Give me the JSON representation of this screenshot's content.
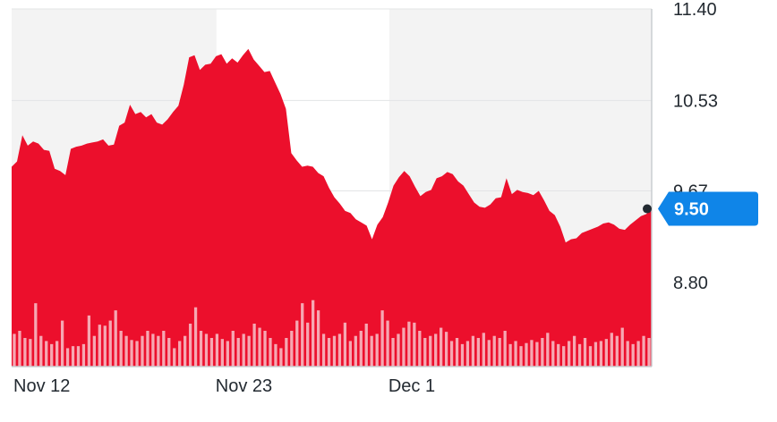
{
  "chart_data": {
    "type": "area",
    "x_ticks": [
      "Nov 12",
      "Nov 23",
      "Dec 1"
    ],
    "y_ticks": [
      "11.40",
      "10.53",
      "9.67",
      "8.80"
    ],
    "ylim": [
      8.0,
      11.4
    ],
    "grid": true,
    "current_price": "9.50",
    "colors": {
      "area": "#ec0f2c",
      "volume": "#f6a8b3",
      "band": "#f3f3f3",
      "grid": "#e3e4e6",
      "price_tag": "#0f85e8",
      "dot": "#232a31"
    },
    "price": [
      9.9,
      9.95,
      10.2,
      10.1,
      10.14,
      10.12,
      10.06,
      10.05,
      9.88,
      9.86,
      9.82,
      10.07,
      10.09,
      10.1,
      10.12,
      10.13,
      10.14,
      10.16,
      10.1,
      10.11,
      10.29,
      10.32,
      10.49,
      10.4,
      10.42,
      10.37,
      10.4,
      10.32,
      10.3,
      10.35,
      10.42,
      10.48,
      10.68,
      10.94,
      10.96,
      10.82,
      10.87,
      10.88,
      10.95,
      10.97,
      10.88,
      10.93,
      10.89,
      10.96,
      11.02,
      10.92,
      10.86,
      10.8,
      10.81,
      10.7,
      10.59,
      10.45,
      10.03,
      9.96,
      9.9,
      9.91,
      9.9,
      9.84,
      9.81,
      9.7,
      9.61,
      9.55,
      9.48,
      9.46,
      9.4,
      9.37,
      9.34,
      9.21,
      9.35,
      9.42,
      9.56,
      9.72,
      9.8,
      9.86,
      9.81,
      9.71,
      9.62,
      9.66,
      9.68,
      9.79,
      9.81,
      9.85,
      9.83,
      9.76,
      9.72,
      9.64,
      9.56,
      9.52,
      9.51,
      9.54,
      9.6,
      9.61,
      9.79,
      9.64,
      9.68,
      9.66,
      9.65,
      9.63,
      9.67,
      9.58,
      9.48,
      9.44,
      9.33,
      9.18,
      9.21,
      9.22,
      9.27,
      9.29,
      9.31,
      9.33,
      9.36,
      9.37,
      9.35,
      9.31,
      9.3,
      9.35,
      9.39,
      9.43,
      9.45,
      9.5
    ],
    "volume": [
      0.32,
      0.35,
      0.28,
      0.27,
      0.62,
      0.3,
      0.25,
      0.22,
      0.25,
      0.45,
      0.18,
      0.2,
      0.2,
      0.22,
      0.5,
      0.3,
      0.41,
      0.4,
      0.45,
      0.55,
      0.35,
      0.3,
      0.26,
      0.25,
      0.3,
      0.35,
      0.32,
      0.3,
      0.35,
      0.28,
      0.18,
      0.25,
      0.3,
      0.42,
      0.58,
      0.35,
      0.32,
      0.28,
      0.32,
      0.27,
      0.25,
      0.35,
      0.28,
      0.32,
      0.3,
      0.42,
      0.38,
      0.35,
      0.28,
      0.22,
      0.18,
      0.28,
      0.35,
      0.45,
      0.62,
      0.43,
      0.65,
      0.55,
      0.32,
      0.28,
      0.3,
      0.32,
      0.43,
      0.25,
      0.3,
      0.35,
      0.42,
      0.3,
      0.32,
      0.55,
      0.45,
      0.28,
      0.32,
      0.38,
      0.44,
      0.43,
      0.35,
      0.28,
      0.3,
      0.32,
      0.38,
      0.34,
      0.25,
      0.28,
      0.22,
      0.25,
      0.3,
      0.28,
      0.33,
      0.26,
      0.3,
      0.28,
      0.35,
      0.22,
      0.25,
      0.2,
      0.23,
      0.26,
      0.24,
      0.28,
      0.33,
      0.25,
      0.22,
      0.2,
      0.25,
      0.3,
      0.22,
      0.28,
      0.2,
      0.24,
      0.25,
      0.27,
      0.33,
      0.3,
      0.38,
      0.25,
      0.22,
      0.25,
      0.3,
      0.28
    ],
    "bands": [
      [
        0.0,
        0.32
      ],
      [
        0.59,
        1.0
      ]
    ]
  }
}
